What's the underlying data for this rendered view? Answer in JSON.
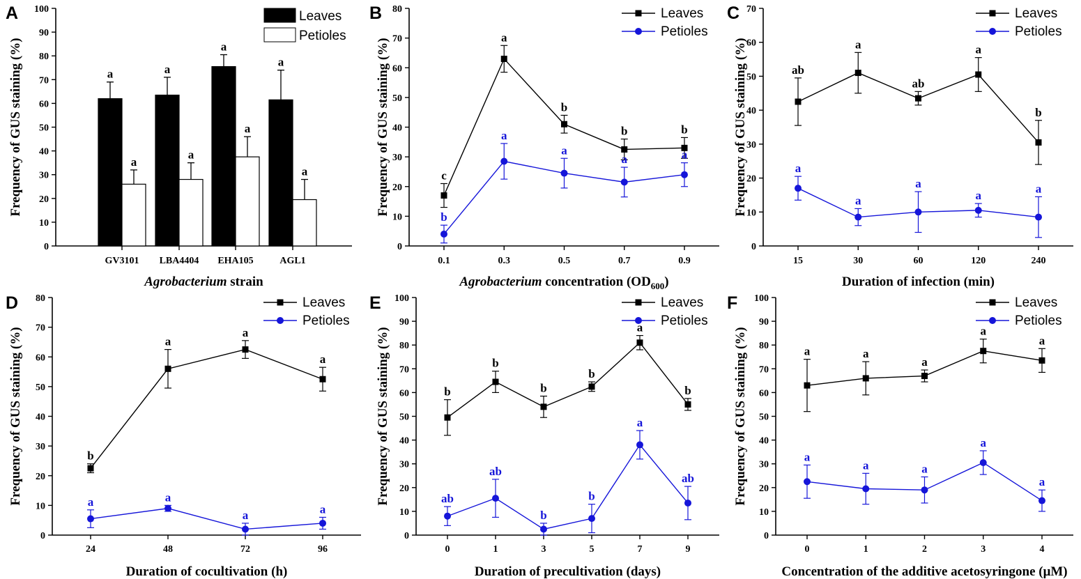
{
  "figure": {
    "colors": {
      "leaves": "#000000",
      "petioles": "#1515d9",
      "axis": "#000000"
    },
    "legend": {
      "leaves": "Leaves",
      "petioles": "Petioles"
    }
  },
  "chart_data": [
    {
      "panel": "A",
      "type": "bar",
      "ylabel": "Frequency of GUS staining (%)",
      "xlabel": "Agrobacterium strain",
      "xlabel_italic_part": "Agrobacterium",
      "xlabel_rest": " strain",
      "ylim": [
        0,
        100
      ],
      "ytick_step": 10,
      "categories": [
        "GV3101",
        "LBA4404",
        "EHA105",
        "AGL1"
      ],
      "series": [
        {
          "name": "Leaves",
          "values": [
            62,
            63.5,
            75.5,
            61.5
          ],
          "errors": [
            7,
            7.5,
            5,
            12.5
          ],
          "letters": [
            "a",
            "a",
            "a",
            "a"
          ]
        },
        {
          "name": "Petioles",
          "values": [
            26,
            28,
            37.5,
            19.5
          ],
          "errors": [
            6,
            7,
            8.5,
            8.5
          ],
          "letters": [
            "a",
            "a",
            "a",
            "a"
          ]
        }
      ],
      "legend_position": "top-right"
    },
    {
      "panel": "B",
      "type": "line",
      "ylabel": "Frequency of GUS staining (%)",
      "xlabel": "Agrobacterium concentration (OD600)",
      "xlabel_italic_part": "Agrobacterium",
      "xlabel_rest": " concentration (OD",
      "xlabel_sub": "600",
      "xlabel_end": ")",
      "ylim": [
        0,
        80
      ],
      "ytick_step": 10,
      "categories": [
        "0.1",
        "0.3",
        "0.5",
        "0.7",
        "0.9"
      ],
      "series": [
        {
          "name": "Leaves",
          "values": [
            17,
            63,
            41,
            32.5,
            33
          ],
          "errors": [
            4,
            4.5,
            3,
            3.5,
            3.5
          ],
          "letters": [
            "c",
            "a",
            "b",
            "b",
            "b"
          ]
        },
        {
          "name": "Petioles",
          "values": [
            4,
            28.5,
            24.5,
            21.5,
            24
          ],
          "errors": [
            3,
            6,
            5,
            5,
            4
          ],
          "letters": [
            "b",
            "a",
            "a",
            "a",
            "a"
          ]
        }
      ],
      "legend_position": "top-right"
    },
    {
      "panel": "C",
      "type": "line",
      "ylabel": "Frequency of GUS staining (%)",
      "xlabel": "Duration of infection (min)",
      "ylim": [
        0,
        70
      ],
      "ytick_step": 10,
      "categories": [
        "15",
        "30",
        "60",
        "120",
        "240"
      ],
      "series": [
        {
          "name": "Leaves",
          "values": [
            42.5,
            51,
            43.5,
            50.5,
            30.5
          ],
          "errors": [
            7,
            6,
            2,
            5,
            6.5
          ],
          "letters": [
            "ab",
            "a",
            "ab",
            "a",
            "b"
          ]
        },
        {
          "name": "Petioles",
          "values": [
            17,
            8.5,
            10,
            10.5,
            8.5
          ],
          "errors": [
            3.5,
            2.5,
            6,
            2,
            6
          ],
          "letters": [
            "a",
            "a",
            "a",
            "a",
            "a"
          ]
        }
      ],
      "legend_position": "top-right"
    },
    {
      "panel": "D",
      "type": "line",
      "ylabel": "Frequency of GUS staining (%)",
      "xlabel": "Duration of cocultivation (h)",
      "ylim": [
        0,
        80
      ],
      "ytick_step": 10,
      "categories": [
        "24",
        "48",
        "72",
        "96"
      ],
      "series": [
        {
          "name": "Leaves",
          "values": [
            22.5,
            56,
            62.5,
            52.5
          ],
          "errors": [
            1.5,
            6.5,
            3,
            4
          ],
          "letters": [
            "b",
            "a",
            "a",
            "a"
          ]
        },
        {
          "name": "Petioles",
          "values": [
            5.5,
            9,
            2,
            4
          ],
          "errors": [
            3,
            1,
            2,
            2
          ],
          "letters": [
            "a",
            "a",
            "a",
            "a"
          ]
        }
      ],
      "legend_position": "top-right"
    },
    {
      "panel": "E",
      "type": "line",
      "ylabel": "Frequency of GUS staining (%)",
      "xlabel": "Duration of precultivation (days)",
      "ylim": [
        0,
        100
      ],
      "ytick_step": 10,
      "categories": [
        "0",
        "1",
        "3",
        "5",
        "7",
        "9"
      ],
      "series": [
        {
          "name": "Leaves",
          "values": [
            49.5,
            64.5,
            54,
            62.5,
            81,
            55
          ],
          "errors": [
            7.5,
            4.5,
            4.5,
            2,
            3,
            2.5
          ],
          "letters": [
            "b",
            "b",
            "b",
            "b",
            "a",
            "b"
          ]
        },
        {
          "name": "Petioles",
          "values": [
            8,
            15.5,
            2.5,
            7,
            38,
            13.5
          ],
          "errors": [
            4,
            8,
            2.5,
            6,
            6,
            7
          ],
          "letters": [
            "ab",
            "ab",
            "b",
            "b",
            "a",
            "ab"
          ]
        }
      ],
      "legend_position": "top-right"
    },
    {
      "panel": "F",
      "type": "line",
      "ylabel": "Frequency of GUS staining (%)",
      "xlabel": "Concentration of the additive acetosyringone (μM)",
      "ylim": [
        0,
        100
      ],
      "ytick_step": 10,
      "categories": [
        "0",
        "1",
        "2",
        "3",
        "4"
      ],
      "series": [
        {
          "name": "Leaves",
          "values": [
            63,
            66,
            67,
            77.5,
            73.5
          ],
          "errors": [
            11,
            7,
            2.5,
            5,
            5
          ],
          "letters": [
            "a",
            "a",
            "a",
            "a",
            "a"
          ]
        },
        {
          "name": "Petioles",
          "values": [
            22.5,
            19.5,
            19,
            30.5,
            14.5
          ],
          "errors": [
            7,
            6.5,
            5.5,
            5,
            4.5
          ],
          "letters": [
            "a",
            "a",
            "a",
            "a",
            "a"
          ]
        }
      ],
      "legend_position": "top-right"
    }
  ]
}
